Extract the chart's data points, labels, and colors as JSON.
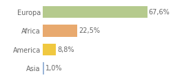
{
  "categories": [
    "Asia",
    "America",
    "Africa",
    "Europa"
  ],
  "values": [
    1.0,
    8.8,
    22.5,
    67.6
  ],
  "labels": [
    "1,0%",
    "8,8%",
    "22,5%",
    "67,6%"
  ],
  "bar_colors": [
    "#9ab5d8",
    "#f0c840",
    "#e8a96e",
    "#b5ca8d"
  ],
  "background_color": "#ffffff",
  "text_color": "#666666",
  "xlim": [
    0,
    82
  ],
  "bar_height": 0.65,
  "fontsize": 7.0
}
